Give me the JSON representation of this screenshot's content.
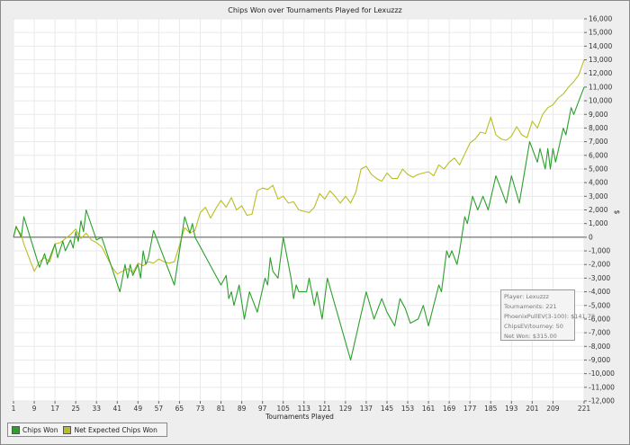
{
  "chart_data": {
    "type": "line",
    "title": "Chips Won over Tournaments Played for  Lexuzzz",
    "xlabel": "Tournaments Played",
    "ylabel": "$",
    "xlim": [
      1,
      221
    ],
    "ylim": [
      -12000,
      16000
    ],
    "x_ticks": [
      1,
      9,
      17,
      25,
      33,
      41,
      49,
      57,
      65,
      73,
      81,
      89,
      97,
      105,
      113,
      121,
      129,
      137,
      145,
      153,
      161,
      169,
      177,
      185,
      193,
      201,
      209,
      221
    ],
    "y_ticks": [
      16000,
      15000,
      14000,
      13000,
      12000,
      11000,
      10000,
      9000,
      8000,
      7000,
      6000,
      5000,
      4000,
      3000,
      2000,
      1000,
      0,
      -1000,
      -2000,
      -3000,
      -4000,
      -5000,
      -6000,
      -7000,
      -8000,
      -9000,
      -10000,
      -11000,
      -12000
    ],
    "y_tick_labels": [
      "16,000",
      "15,000",
      "14,000",
      "13,000",
      "12,000",
      "11,000",
      "10,000",
      "9,000",
      "8,000",
      "7,000",
      "6,000",
      "5,000",
      "4,000",
      "3,000",
      "2,000",
      "1,000",
      "0",
      "-1,000",
      "-2,000",
      "-3,000",
      "-4,000",
      "-5,000",
      "-6,000",
      "-7,000",
      "-8,000",
      "-9,000",
      "-10,000",
      "-11,000",
      "-12,000"
    ],
    "grid": true,
    "legend_position": "bottom-left",
    "series": [
      {
        "name": "Chips Won",
        "color": "#2ca02c",
        "points": [
          [
            1,
            0
          ],
          [
            2,
            800
          ],
          [
            4,
            0
          ],
          [
            5,
            1500
          ],
          [
            11,
            -2200
          ],
          [
            13,
            -1200
          ],
          [
            14,
            -2000
          ],
          [
            17,
            -500
          ],
          [
            18,
            -1500
          ],
          [
            20,
            -300
          ],
          [
            21,
            -1000
          ],
          [
            23,
            -200
          ],
          [
            24,
            -800
          ],
          [
            25,
            400
          ],
          [
            26,
            -300
          ],
          [
            27,
            1200
          ],
          [
            28,
            400
          ],
          [
            29,
            2000
          ],
          [
            33,
            -200
          ],
          [
            35,
            0
          ],
          [
            42,
            -4000
          ],
          [
            44,
            -2000
          ],
          [
            45,
            -3000
          ],
          [
            46,
            -2000
          ],
          [
            47,
            -2800
          ],
          [
            49,
            -2000
          ],
          [
            50,
            -3000
          ],
          [
            51,
            -1000
          ],
          [
            52,
            -2000
          ],
          [
            53,
            -1500
          ],
          [
            55,
            500
          ],
          [
            60,
            -2000
          ],
          [
            63,
            -3500
          ],
          [
            67,
            1500
          ],
          [
            69,
            300
          ],
          [
            70,
            1000
          ],
          [
            71,
            0
          ],
          [
            81,
            -3500
          ],
          [
            83,
            -2800
          ],
          [
            84,
            -4500
          ],
          [
            85,
            -4000
          ],
          [
            86,
            -5000
          ],
          [
            88,
            -3500
          ],
          [
            90,
            -6000
          ],
          [
            92,
            -4000
          ],
          [
            93,
            -4500
          ],
          [
            95,
            -5500
          ],
          [
            98,
            -3000
          ],
          [
            99,
            -3500
          ],
          [
            100,
            -1500
          ],
          [
            101,
            -2500
          ],
          [
            103,
            -3000
          ],
          [
            105,
            0
          ],
          [
            108,
            -3000
          ],
          [
            109,
            -4500
          ],
          [
            110,
            -3500
          ],
          [
            111,
            -4000
          ],
          [
            114,
            -4000
          ],
          [
            115,
            -3000
          ],
          [
            117,
            -5000
          ],
          [
            118,
            -4000
          ],
          [
            120,
            -6000
          ],
          [
            121,
            -4500
          ],
          [
            122,
            -3000
          ],
          [
            131,
            -9000
          ],
          [
            137,
            -4000
          ],
          [
            140,
            -6000
          ],
          [
            143,
            -4500
          ],
          [
            145,
            -5500
          ],
          [
            148,
            -6500
          ],
          [
            150,
            -4500
          ],
          [
            152,
            -5200
          ],
          [
            154,
            -6300
          ],
          [
            157,
            -6000
          ],
          [
            159,
            -5000
          ],
          [
            161,
            -6500
          ],
          [
            165,
            -3500
          ],
          [
            166,
            -4000
          ],
          [
            168,
            -1000
          ],
          [
            169,
            -1500
          ],
          [
            170,
            -1000
          ],
          [
            172,
            -2000
          ],
          [
            173,
            -1000
          ],
          [
            175,
            1500
          ],
          [
            176,
            1000
          ],
          [
            178,
            3000
          ],
          [
            180,
            2000
          ],
          [
            181,
            2500
          ],
          [
            182,
            3000
          ],
          [
            184,
            2000
          ],
          [
            187,
            4500
          ],
          [
            188,
            4000
          ],
          [
            190,
            3000
          ],
          [
            191,
            2500
          ],
          [
            193,
            4500
          ],
          [
            196,
            2500
          ],
          [
            200,
            7000
          ],
          [
            202,
            6000
          ],
          [
            203,
            5500
          ],
          [
            204,
            6500
          ],
          [
            206,
            5000
          ],
          [
            207,
            6500
          ],
          [
            208,
            5000
          ],
          [
            209,
            6500
          ],
          [
            210,
            5500
          ],
          [
            213,
            8000
          ],
          [
            214,
            7500
          ],
          [
            216,
            9500
          ],
          [
            217,
            9000
          ],
          [
            219,
            10000
          ],
          [
            221,
            11000
          ]
        ]
      },
      {
        "name": "Net Expected Chips Won",
        "color": "#bcbd22",
        "points": [
          [
            1,
            0
          ],
          [
            2,
            700
          ],
          [
            4,
            200
          ],
          [
            5,
            -500
          ],
          [
            9,
            -2500
          ],
          [
            11,
            -1800
          ],
          [
            13,
            -1500
          ],
          [
            15,
            -1800
          ],
          [
            17,
            -500
          ],
          [
            19,
            -400
          ],
          [
            21,
            -100
          ],
          [
            23,
            200
          ],
          [
            25,
            600
          ],
          [
            27,
            -100
          ],
          [
            29,
            300
          ],
          [
            31,
            -200
          ],
          [
            33,
            -400
          ],
          [
            35,
            -700
          ],
          [
            39,
            -2200
          ],
          [
            41,
            -2700
          ],
          [
            43,
            -2500
          ],
          [
            45,
            -2300
          ],
          [
            47,
            -2600
          ],
          [
            49,
            -1900
          ],
          [
            51,
            -2100
          ],
          [
            53,
            -1800
          ],
          [
            55,
            -1900
          ],
          [
            57,
            -1600
          ],
          [
            59,
            -1800
          ],
          [
            61,
            -1900
          ],
          [
            63,
            -1800
          ],
          [
            65,
            -600
          ],
          [
            67,
            700
          ],
          [
            69,
            300
          ],
          [
            71,
            500
          ],
          [
            73,
            1800
          ],
          [
            75,
            2200
          ],
          [
            77,
            1400
          ],
          [
            79,
            2100
          ],
          [
            81,
            2700
          ],
          [
            83,
            2200
          ],
          [
            85,
            2900
          ],
          [
            87,
            2000
          ],
          [
            89,
            2300
          ],
          [
            91,
            1600
          ],
          [
            93,
            1700
          ],
          [
            95,
            3400
          ],
          [
            97,
            3600
          ],
          [
            99,
            3500
          ],
          [
            101,
            3800
          ],
          [
            103,
            2800
          ],
          [
            105,
            3000
          ],
          [
            107,
            2500
          ],
          [
            109,
            2600
          ],
          [
            111,
            2000
          ],
          [
            113,
            1900
          ],
          [
            115,
            1800
          ],
          [
            117,
            2200
          ],
          [
            119,
            3200
          ],
          [
            121,
            2800
          ],
          [
            123,
            3400
          ],
          [
            125,
            3000
          ],
          [
            127,
            2500
          ],
          [
            129,
            3000
          ],
          [
            131,
            2500
          ],
          [
            133,
            3300
          ],
          [
            135,
            5000
          ],
          [
            137,
            5200
          ],
          [
            139,
            4600
          ],
          [
            141,
            4300
          ],
          [
            143,
            4100
          ],
          [
            145,
            4700
          ],
          [
            147,
            4300
          ],
          [
            149,
            4300
          ],
          [
            151,
            5000
          ],
          [
            153,
            4600
          ],
          [
            155,
            4400
          ],
          [
            157,
            4600
          ],
          [
            159,
            4700
          ],
          [
            161,
            4800
          ],
          [
            163,
            4500
          ],
          [
            165,
            5300
          ],
          [
            167,
            5000
          ],
          [
            169,
            5500
          ],
          [
            171,
            5800
          ],
          [
            173,
            5300
          ],
          [
            175,
            6100
          ],
          [
            177,
            6900
          ],
          [
            179,
            7200
          ],
          [
            181,
            7700
          ],
          [
            183,
            7600
          ],
          [
            185,
            8800
          ],
          [
            187,
            7500
          ],
          [
            189,
            7200
          ],
          [
            191,
            7100
          ],
          [
            193,
            7400
          ],
          [
            195,
            8100
          ],
          [
            197,
            7500
          ],
          [
            199,
            7300
          ],
          [
            201,
            8500
          ],
          [
            203,
            8000
          ],
          [
            205,
            9000
          ],
          [
            207,
            9500
          ],
          [
            209,
            9700
          ],
          [
            211,
            10200
          ],
          [
            213,
            10500
          ],
          [
            215,
            11000
          ],
          [
            217,
            11400
          ],
          [
            219,
            11900
          ],
          [
            221,
            13000
          ]
        ]
      }
    ],
    "info_box": {
      "player": "Player: Lexuzzz",
      "tournaments": "Tournaments: 221",
      "phoenix": "PhoenixPullEV(3-100): $141.78",
      "chipsev": "ChipsEV/tourney: 50",
      "netwon": "Net Won: $315.00"
    }
  },
  "legend": {
    "chips_won_label": "Chips Won",
    "chips_won_color": "#2ca02c",
    "net_expected_label": "Net Expected Chips Won",
    "net_expected_color": "#bcbd22"
  }
}
